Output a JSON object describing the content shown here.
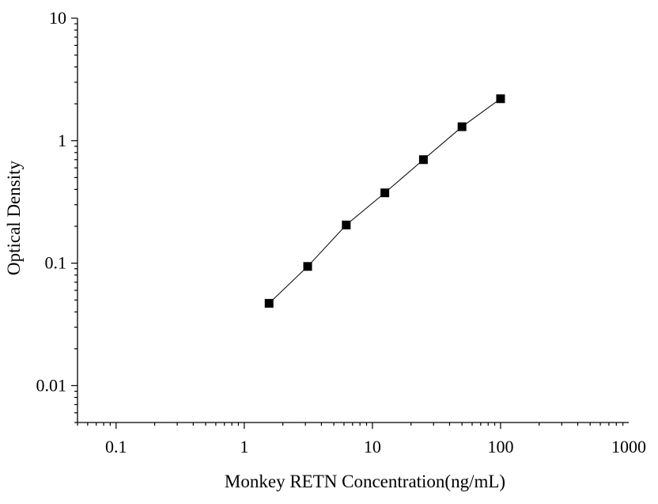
{
  "chart_data": {
    "type": "scatter",
    "title": "",
    "xlabel": "Monkey RETN Concentration(ng/mL)",
    "ylabel": "Optical Density",
    "xscale": "log",
    "yscale": "log",
    "xlim": [
      0.05,
      1000
    ],
    "ylim": [
      0.005,
      10
    ],
    "x_tick_labels": [
      "0.1",
      "1",
      "10",
      "100",
      "1000"
    ],
    "y_tick_labels": [
      "0.01",
      "0.1",
      "1",
      "10"
    ],
    "grid": false,
    "legend": "none",
    "series": [
      {
        "x": [
          1.5625,
          3.125,
          6.25,
          12.5,
          25,
          50,
          100
        ],
        "y": [
          0.047,
          0.094,
          0.205,
          0.375,
          0.7,
          1.3,
          2.2
        ],
        "marker": "square",
        "line": true,
        "color": "#000000"
      }
    ]
  }
}
